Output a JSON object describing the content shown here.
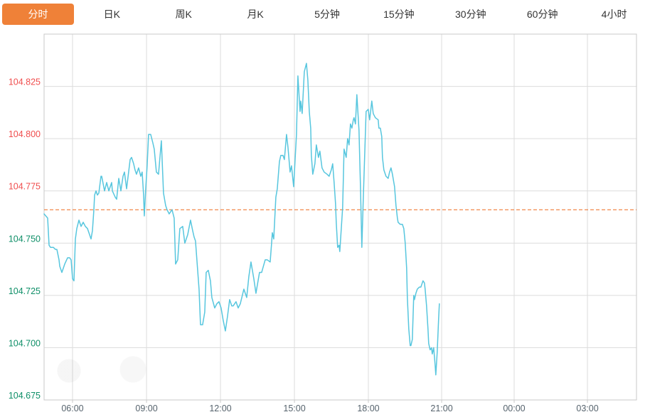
{
  "tabs": {
    "items": [
      {
        "label": "分时",
        "active": true
      },
      {
        "label": "日K"
      },
      {
        "label": "周K"
      },
      {
        "label": "月K"
      },
      {
        "label": "5分钟"
      },
      {
        "label": "15分钟"
      },
      {
        "label": "30分钟"
      },
      {
        "label": "60分钟"
      },
      {
        "label": "4小时"
      }
    ],
    "active_bg_color": "#ef8138",
    "active_text_color": "#ffffff",
    "text_color": "#333333"
  },
  "chart_data": {
    "type": "line",
    "title": "",
    "series_name": "intraday-price",
    "legend": [],
    "grid": true,
    "y_range": [
      104.675,
      104.85
    ],
    "previous_close": 104.766,
    "colors": {
      "line": "#57c6de",
      "up": "#f04e4e",
      "down": "#0f8f68",
      "prev_close_line": "#ed6a1f",
      "grid": "#dcdcdc",
      "border": "#c9c9c9",
      "x_label": "#56636d"
    },
    "y_ticks": [
      {
        "label": "104.825",
        "trend": "up"
      },
      {
        "label": "104.800",
        "trend": "up"
      },
      {
        "label": "104.775",
        "trend": "up"
      },
      {
        "label": "104.750",
        "trend": "down"
      },
      {
        "label": "104.725",
        "trend": "down"
      },
      {
        "label": "104.700",
        "trend": "down"
      },
      {
        "label": "104.675",
        "trend": "down"
      }
    ],
    "x_ticks": [
      {
        "label": "06:00",
        "pos": 0.048
      },
      {
        "label": "09:00",
        "pos": 0.1729
      },
      {
        "label": "12:00",
        "pos": 0.2977
      },
      {
        "label": "15:00",
        "pos": 0.4226
      },
      {
        "label": "18:00",
        "pos": 0.5474
      },
      {
        "label": "21:00",
        "pos": 0.6711
      },
      {
        "label": "00:00",
        "pos": 0.7935
      },
      {
        "label": "03:00",
        "pos": 0.9172
      }
    ],
    "points": [
      [
        0.0,
        104.764
      ],
      [
        0.006,
        104.762
      ],
      [
        0.0084,
        104.749
      ],
      [
        0.0108,
        104.748
      ],
      [
        0.0156,
        104.748
      ],
      [
        0.0192,
        104.747
      ],
      [
        0.0216,
        104.747
      ],
      [
        0.0252,
        104.742
      ],
      [
        0.0264,
        104.739
      ],
      [
        0.03,
        104.736
      ],
      [
        0.0348,
        104.74
      ],
      [
        0.0396,
        104.743
      ],
      [
        0.0432,
        104.743
      ],
      [
        0.0456,
        104.742
      ],
      [
        0.048,
        104.733
      ],
      [
        0.0504,
        104.732
      ],
      [
        0.0528,
        104.752
      ],
      [
        0.0552,
        104.757
      ],
      [
        0.0588,
        104.761
      ],
      [
        0.0624,
        104.758
      ],
      [
        0.066,
        104.76
      ],
      [
        0.0696,
        104.758
      ],
      [
        0.0732,
        104.757
      ],
      [
        0.0768,
        104.754
      ],
      [
        0.0792,
        104.752
      ],
      [
        0.0816,
        104.756
      ],
      [
        0.084,
        104.766
      ],
      [
        0.0852,
        104.773
      ],
      [
        0.0876,
        104.775
      ],
      [
        0.09,
        104.773
      ],
      [
        0.0924,
        104.774
      ],
      [
        0.096,
        104.782
      ],
      [
        0.0972,
        104.782
      ],
      [
        0.102,
        104.775
      ],
      [
        0.1056,
        104.779
      ],
      [
        0.1092,
        104.775
      ],
      [
        0.114,
        104.779
      ],
      [
        0.1152,
        104.775
      ],
      [
        0.12,
        104.772
      ],
      [
        0.1224,
        104.771
      ],
      [
        0.126,
        104.781
      ],
      [
        0.1296,
        104.775
      ],
      [
        0.1332,
        104.782
      ],
      [
        0.1356,
        104.784
      ],
      [
        0.1392,
        104.776
      ],
      [
        0.1452,
        104.79
      ],
      [
        0.1476,
        104.791
      ],
      [
        0.1512,
        104.788
      ],
      [
        0.1536,
        104.785
      ],
      [
        0.156,
        104.783
      ],
      [
        0.1596,
        104.786
      ],
      [
        0.1632,
        104.782
      ],
      [
        0.1656,
        104.784
      ],
      [
        0.168,
        104.773
      ],
      [
        0.1692,
        104.763
      ],
      [
        0.1716,
        104.776
      ],
      [
        0.174,
        104.787
      ],
      [
        0.1764,
        104.802
      ],
      [
        0.18,
        104.802
      ],
      [
        0.1836,
        104.798
      ],
      [
        0.186,
        104.795
      ],
      [
        0.1896,
        104.784
      ],
      [
        0.1932,
        104.783
      ],
      [
        0.198,
        104.799
      ],
      [
        0.2016,
        104.774
      ],
      [
        0.2052,
        104.768
      ],
      [
        0.2076,
        104.766
      ],
      [
        0.2112,
        104.764
      ],
      [
        0.216,
        104.766
      ],
      [
        0.2196,
        104.762
      ],
      [
        0.222,
        104.74
      ],
      [
        0.2256,
        104.742
      ],
      [
        0.2292,
        104.757
      ],
      [
        0.234,
        104.758
      ],
      [
        0.2376,
        104.75
      ],
      [
        0.2424,
        104.754
      ],
      [
        0.2472,
        104.761
      ],
      [
        0.2508,
        104.756
      ],
      [
        0.2532,
        104.753
      ],
      [
        0.2556,
        104.751
      ],
      [
        0.2616,
        104.728
      ],
      [
        0.264,
        104.711
      ],
      [
        0.2676,
        104.711
      ],
      [
        0.2712,
        104.717
      ],
      [
        0.2736,
        104.736
      ],
      [
        0.2772,
        104.737
      ],
      [
        0.2808,
        104.732
      ],
      [
        0.2832,
        104.724
      ],
      [
        0.288,
        104.719
      ],
      [
        0.2916,
        104.721
      ],
      [
        0.2952,
        104.722
      ],
      [
        0.2988,
        104.719
      ],
      [
        0.3024,
        104.713
      ],
      [
        0.306,
        104.708
      ],
      [
        0.3096,
        104.715
      ],
      [
        0.3132,
        104.723
      ],
      [
        0.3168,
        104.72
      ],
      [
        0.3192,
        104.72
      ],
      [
        0.324,
        104.722
      ],
      [
        0.3276,
        104.719
      ],
      [
        0.3312,
        104.721
      ],
      [
        0.3372,
        104.728
      ],
      [
        0.342,
        104.724
      ],
      [
        0.3456,
        104.734
      ],
      [
        0.3492,
        104.741
      ],
      [
        0.354,
        104.733
      ],
      [
        0.3576,
        104.726
      ],
      [
        0.3636,
        104.736
      ],
      [
        0.3672,
        104.736
      ],
      [
        0.3732,
        104.742
      ],
      [
        0.3768,
        104.742
      ],
      [
        0.3816,
        104.741
      ],
      [
        0.384,
        104.75
      ],
      [
        0.3852,
        104.755
      ],
      [
        0.3876,
        104.752
      ],
      [
        0.3912,
        104.772
      ],
      [
        0.3936,
        104.776
      ],
      [
        0.3972,
        104.789
      ],
      [
        0.3996,
        104.792
      ],
      [
        0.4032,
        104.792
      ],
      [
        0.4056,
        104.79
      ],
      [
        0.4092,
        104.802
      ],
      [
        0.4116,
        104.796
      ],
      [
        0.4152,
        104.784
      ],
      [
        0.4176,
        104.787
      ],
      [
        0.4212,
        104.777
      ],
      [
        0.426,
        104.802
      ],
      [
        0.4284,
        104.83
      ],
      [
        0.432,
        104.813
      ],
      [
        0.4332,
        104.818
      ],
      [
        0.4356,
        104.812
      ],
      [
        0.4392,
        104.832
      ],
      [
        0.4428,
        104.836
      ],
      [
        0.4452,
        104.828
      ],
      [
        0.4476,
        104.813
      ],
      [
        0.45,
        104.805
      ],
      [
        0.4512,
        104.792
      ],
      [
        0.4536,
        104.783
      ],
      [
        0.4572,
        104.788
      ],
      [
        0.4596,
        104.797
      ],
      [
        0.4632,
        104.791
      ],
      [
        0.4656,
        104.794
      ],
      [
        0.4692,
        104.786
      ],
      [
        0.4728,
        104.784
      ],
      [
        0.4776,
        104.783
      ],
      [
        0.4812,
        104.782
      ],
      [
        0.4848,
        104.785
      ],
      [
        0.4872,
        104.788
      ],
      [
        0.4896,
        104.779
      ],
      [
        0.492,
        104.769
      ],
      [
        0.4932,
        104.76
      ],
      [
        0.4956,
        104.748
      ],
      [
        0.498,
        104.749
      ],
      [
        0.4992,
        104.746
      ],
      [
        0.504,
        104.767
      ],
      [
        0.5064,
        104.795
      ],
      [
        0.51,
        104.791
      ],
      [
        0.5124,
        104.8
      ],
      [
        0.5148,
        104.797
      ],
      [
        0.5172,
        104.807
      ],
      [
        0.5196,
        104.805
      ],
      [
        0.522,
        104.809
      ],
      [
        0.5232,
        104.81
      ],
      [
        0.5256,
        104.807
      ],
      [
        0.528,
        104.821
      ],
      [
        0.5316,
        104.804
      ],
      [
        0.534,
        104.778
      ],
      [
        0.5364,
        104.748
      ],
      [
        0.5388,
        104.771
      ],
      [
        0.5436,
        104.813
      ],
      [
        0.5472,
        104.814
      ],
      [
        0.5496,
        104.809
      ],
      [
        0.5532,
        104.818
      ],
      [
        0.5556,
        104.812
      ],
      [
        0.5592,
        104.81
      ],
      [
        0.564,
        104.809
      ],
      [
        0.5652,
        104.805
      ],
      [
        0.5676,
        104.805
      ],
      [
        0.57,
        104.801
      ],
      [
        0.5712,
        104.791
      ],
      [
        0.5736,
        104.785
      ],
      [
        0.5772,
        104.782
      ],
      [
        0.5808,
        104.781
      ],
      [
        0.5832,
        104.784
      ],
      [
        0.5856,
        104.786
      ],
      [
        0.588,
        104.783
      ],
      [
        0.5916,
        104.777
      ],
      [
        0.594,
        104.768
      ],
      [
        0.5964,
        104.762
      ],
      [
        0.5976,
        104.76
      ],
      [
        0.6012,
        104.759
      ],
      [
        0.6048,
        104.759
      ],
      [
        0.6072,
        104.757
      ],
      [
        0.6096,
        104.75
      ],
      [
        0.612,
        104.738
      ],
      [
        0.6132,
        104.724
      ],
      [
        0.6156,
        104.709
      ],
      [
        0.618,
        104.701
      ],
      [
        0.6192,
        104.701
      ],
      [
        0.6216,
        104.704
      ],
      [
        0.624,
        104.725
      ],
      [
        0.6252,
        104.723
      ],
      [
        0.6276,
        104.726
      ],
      [
        0.63,
        104.728
      ],
      [
        0.6336,
        104.729
      ],
      [
        0.636,
        104.729
      ],
      [
        0.6396,
        104.732
      ],
      [
        0.642,
        104.731
      ],
      [
        0.6432,
        104.728
      ],
      [
        0.6456,
        104.72
      ],
      [
        0.648,
        104.709
      ],
      [
        0.6492,
        104.702
      ],
      [
        0.6516,
        104.699
      ],
      [
        0.654,
        104.7
      ],
      [
        0.6552,
        104.697
      ],
      [
        0.6576,
        104.7
      ],
      [
        0.66,
        104.692
      ],
      [
        0.6612,
        104.687
      ],
      [
        0.6636,
        104.698
      ],
      [
        0.666,
        104.714
      ],
      [
        0.6672,
        104.721
      ]
    ]
  }
}
